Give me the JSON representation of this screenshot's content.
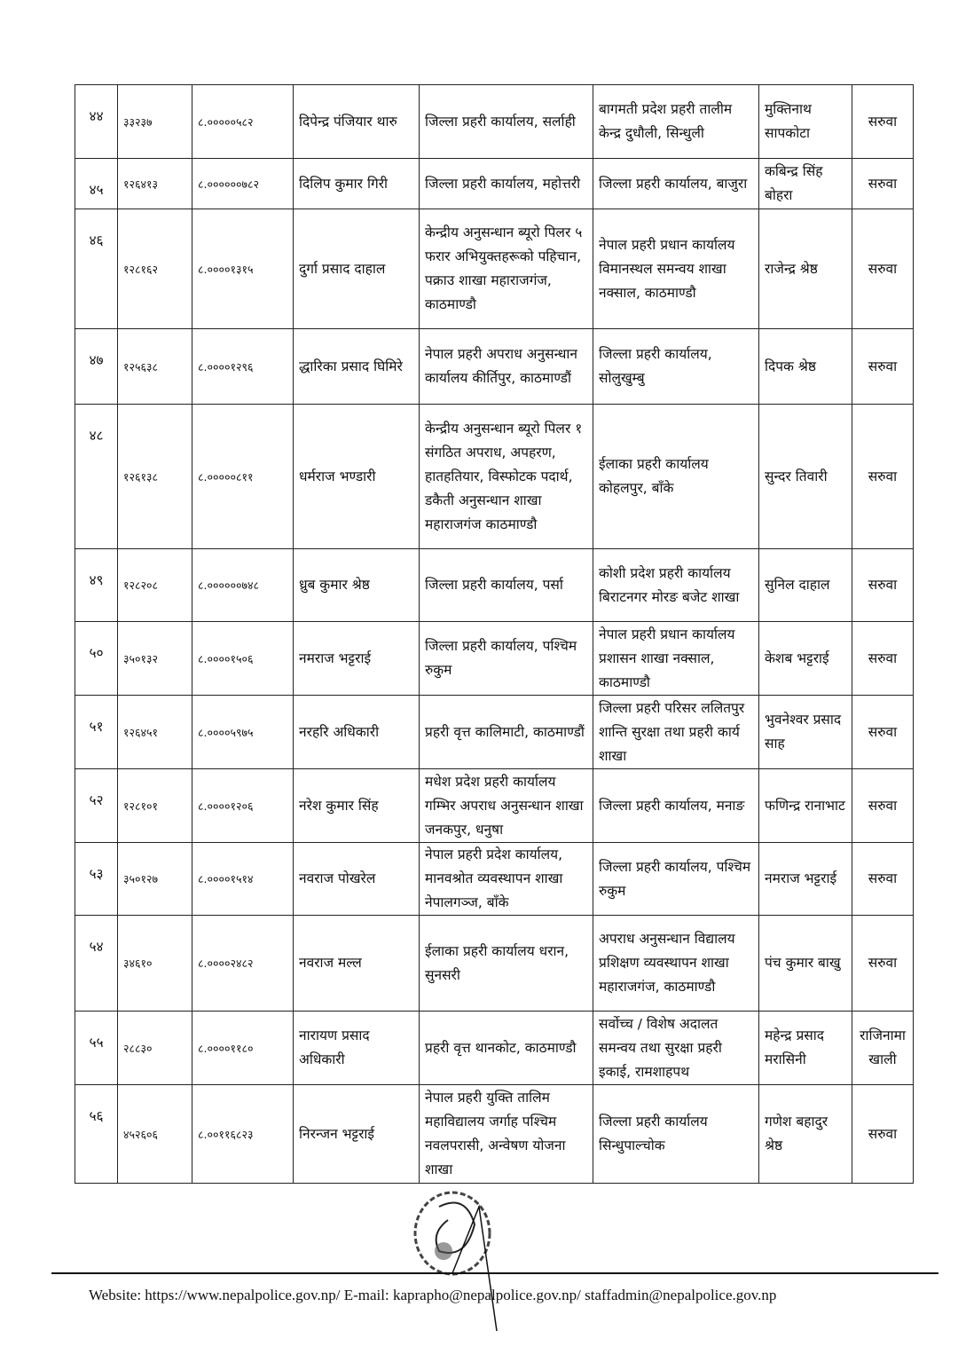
{
  "rows": [
    {
      "sn": "४४",
      "id": "३३२३७",
      "code": "८.०००००५८२",
      "name": "दिपेन्द्र पंजियार थारु",
      "from": "जिल्ला प्रहरी कार्यालय, सर्लाही",
      "to": "बागमती प्रदेश प्रहरी तालीम केन्द्र दुधौली, सिन्धुली",
      "replacement": "मुक्तिनाथ सापकोटा",
      "remark": "सरुवा"
    },
    {
      "sn": "४५",
      "id": "१२६४१३",
      "code": "८.००००००७८२",
      "name": "दिलिप कुमार गिरी",
      "from": "जिल्ला प्रहरी कार्यालय, महोत्तरी",
      "to": "जिल्ला प्रहरी कार्यालय, बाजुरा",
      "replacement": "कबिन्द्र सिंह बोहरा",
      "remark": "सरुवा"
    },
    {
      "sn": "४६",
      "id": "१२८१६२",
      "code": "८.००००१३१५",
      "name": "दुर्गा प्रसाद दाहाल",
      "from": "केन्द्रीय अनुसन्धान ब्यूरो पिलर ५ फरार अभियुक्तहरूको पहिचान, पक्राउ शाखा महाराजगंज, काठमाण्डौ",
      "to": "नेपाल प्रहरी प्रधान कार्यालय विमानस्थल समन्वय शाखा नक्साल, काठमाण्डौ",
      "replacement": "राजेन्द्र श्रेष्ठ",
      "remark": "सरुवा"
    },
    {
      "sn": "४७",
      "id": "१२५६३८",
      "code": "८.००००१२९६",
      "name": "द्धारिका प्रसाद घिमिरे",
      "from": "नेपाल प्रहरी अपराध अनुसन्धान कार्यालय कीर्तिपुर, काठमाण्डौं",
      "to": "जिल्ला प्रहरी कार्यालय, सोलुखुम्बु",
      "replacement": "दिपक श्रेष्ठ",
      "remark": "सरुवा"
    },
    {
      "sn": "४८",
      "id": "१२६१३८",
      "code": "८.०००००८११",
      "name": "धर्मराज भण्डारी",
      "from": "केन्द्रीय अनुसन्धान ब्यूरो पिलर १ संगठित अपराध, अपहरण, हातहतियार, विस्फोटक पदार्थ, डकैती अनुसन्धान शाखा महाराजगंज काठमाण्डौ",
      "to": "ईलाका प्रहरी कार्यालय कोहलपुर, बाँके",
      "replacement": "सुन्दर तिवारी",
      "remark": "सरुवा"
    },
    {
      "sn": "४९",
      "id": "१२८२०८",
      "code": "८.००००००७४८",
      "name": "ध्रुब कुमार श्रेष्ठ",
      "from": "जिल्ला प्रहरी कार्यालय, पर्सा",
      "to": "कोशी प्रदेश प्रहरी कार्यालय बिराटनगर मोरङ बजेट शाखा",
      "replacement": "सुनिल दाहाल",
      "remark": "सरुवा"
    },
    {
      "sn": "५०",
      "id": "३५०१३२",
      "code": "८.००००१५०६",
      "name": "नमराज भट्टराई",
      "from": "जिल्ला प्रहरी कार्यालय, पश्चिम रुकुम",
      "to": "नेपाल प्रहरी प्रधान कार्यालय प्रशासन शाखा नक्साल, काठमाण्डौ",
      "replacement": "केशब भट्टराई",
      "remark": "सरुवा"
    },
    {
      "sn": "५१",
      "id": "१२६४५१",
      "code": "८.००००५९७५",
      "name": "नरहरि अधिकारी",
      "from": "प्रहरी वृत्त कालिमाटी, काठमाण्डौं",
      "to": "जिल्ला प्रहरी परिसर ललितपुर शान्ति सुरक्षा तथा प्रहरी कार्य शाखा",
      "replacement": "भुवनेश्वर प्रसाद साह",
      "remark": "सरुवा"
    },
    {
      "sn": "५२",
      "id": "१२८१०१",
      "code": "८.००००१२०६",
      "name": "नरेश कुमार सिंह",
      "from": "मधेश प्रदेश प्रहरी कार्यालय गम्भिर अपराध अनुसन्धान शाखा जनकपुर, धनुषा",
      "to": "जिल्ला प्रहरी कार्यालय, मनाङ",
      "replacement": "फणिन्द्र रानाभाट",
      "remark": "सरुवा"
    },
    {
      "sn": "५३",
      "id": "३५०१२७",
      "code": "८.००००१५१४",
      "name": "नवराज पोखरेल",
      "from": "नेपाल प्रहरी प्रदेश कार्यालय, मानवश्रोत व्यवस्थापन शाखा नेपालगञ्ज, बाँके",
      "to": "जिल्ला प्रहरी कार्यालय, पश्चिम रुकुम",
      "replacement": "नमराज भट्टराई",
      "remark": "सरुवा"
    },
    {
      "sn": "५४",
      "id": "३४६१०",
      "code": "८.००००२४८२",
      "name": "नवराज मल्ल",
      "from": "ईलाका प्रहरी कार्यालय धरान, सुनसरी",
      "to": "अपराध अनुसन्धान विद्यालय प्रशिक्षण व्यवस्थापन शाखा महाराजगंज, काठमाण्डौ",
      "replacement": "पंच कुमार बाखु",
      "remark": "सरुवा"
    },
    {
      "sn": "५५",
      "id": "२८८३०",
      "code": "८.००००११८०",
      "name": "नारायण प्रसाद अधिकारी",
      "from": "प्रहरी वृत्त थानकोट, काठमाण्डौ",
      "to": "सर्वोच्च / विशेष अदालत समन्वय तथा सुरक्षा प्रहरी इकाई, रामशाहपथ",
      "replacement": "महेन्द्र प्रसाद मरासिनी",
      "remark": "राजिनामा खाली"
    },
    {
      "sn": "५६",
      "id": "४५२६०६",
      "code": "८.००११६८२३",
      "name": "निरन्जन भट्टराई",
      "from": "नेपाल प्रहरी युक्ति तालिम महाविद्यालय जर्गाह पश्चिम नवलपरासी, अन्वेषण योजना शाखा",
      "to": "जिल्ला प्रहरी कार्यालय सिन्धुपाल्चोक",
      "replacement": "गणेश बहादुर श्रेष्ठ",
      "remark": "सरुवा"
    }
  ],
  "stamp_text": "नेपाल सरकार गृह मन्त्रालय नेपाल प्रहरी",
  "footer": "Website: https://www.nepalpolice.gov.np/ E-mail: kaprapho@nepalpolice.gov.np/ staffadmin@nepalpolice.gov.np"
}
